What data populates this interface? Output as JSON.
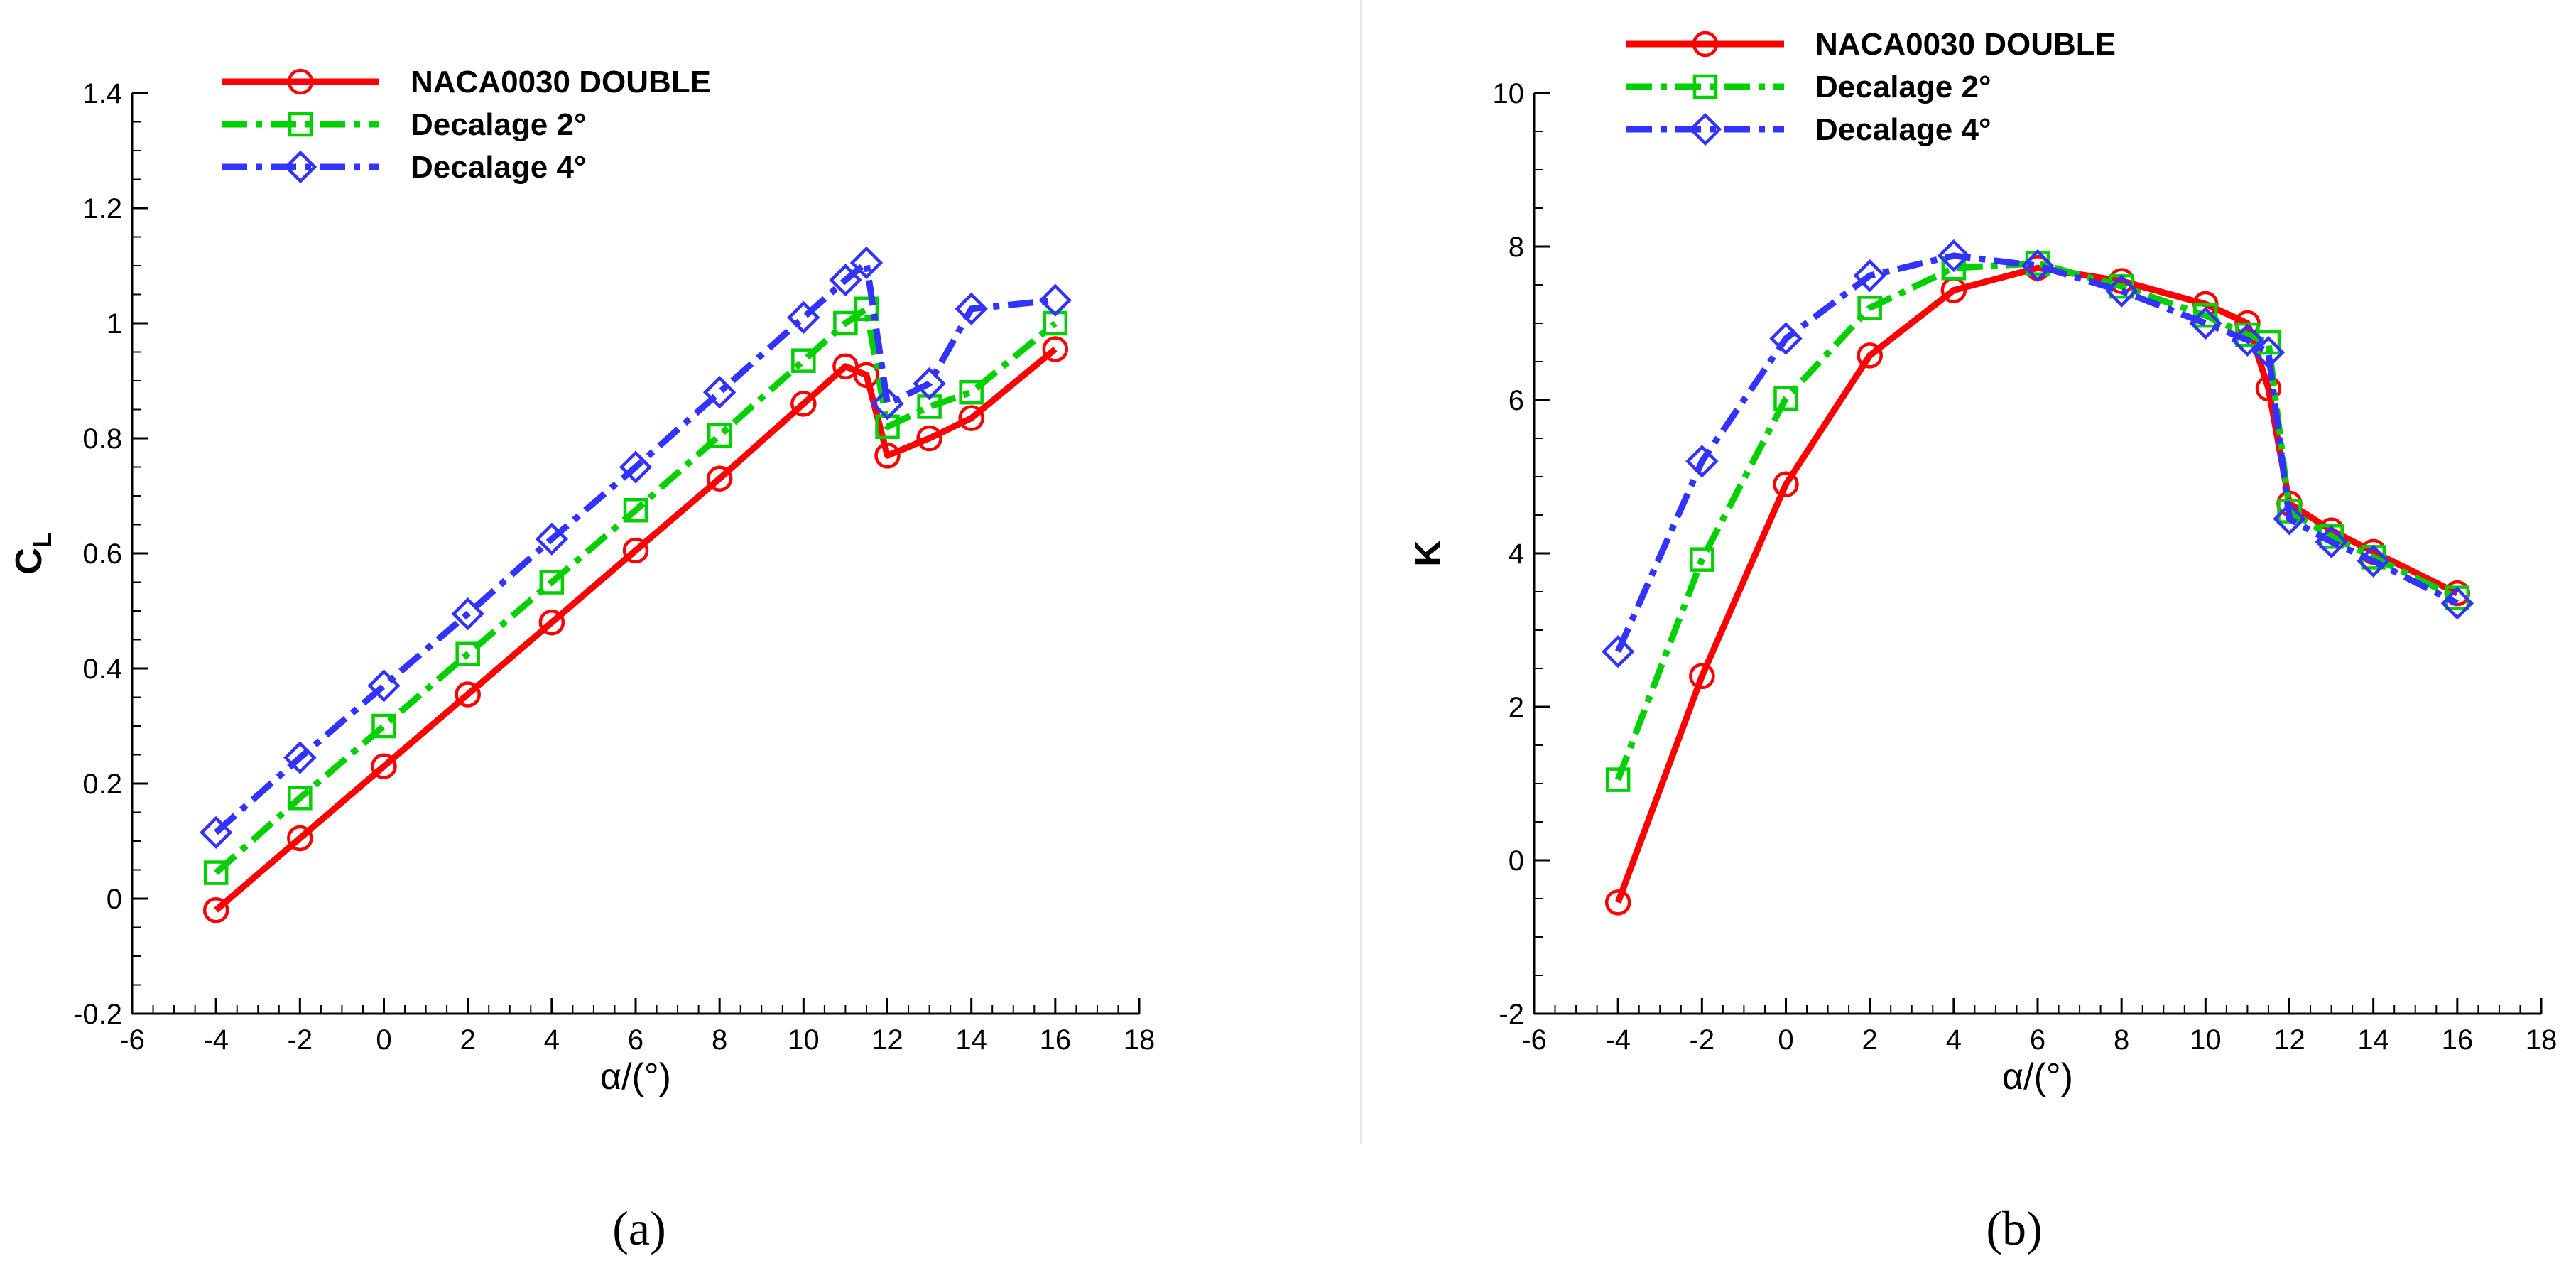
{
  "chart_data": [
    {
      "type": "line",
      "id": "a",
      "caption": "(a)",
      "xlabel": "α/(°)",
      "ylabel": "C",
      "ylabel_sub": "L",
      "xlim": [
        -6,
        18
      ],
      "ylim": [
        -0.2,
        1.4
      ],
      "xticks": [
        -6,
        -4,
        -2,
        0,
        2,
        4,
        6,
        8,
        10,
        12,
        14,
        16,
        18
      ],
      "xtick_labels": [
        "-6",
        "-4",
        "-2",
        "0",
        "2",
        "4",
        "6",
        "8",
        "10",
        "12",
        "14",
        "16",
        "18"
      ],
      "yticks": [
        -0.2,
        0,
        0.2,
        0.4,
        0.6,
        0.8,
        1,
        1.2,
        1.4
      ],
      "ytick_labels": [
        "-0.2",
        "0",
        "0.2",
        "0.4",
        "0.6",
        "0.8",
        "1",
        "1.2",
        "1.4"
      ],
      "grid": false,
      "legend_position": "top-left",
      "series": [
        {
          "name": "NACA0030 DOUBLE",
          "color": "#ff0000",
          "marker": "circle",
          "dash": "solid",
          "x": [
            -4,
            -2,
            0,
            2,
            4,
            6,
            8,
            10,
            11,
            11.5,
            12,
            13,
            14,
            16
          ],
          "y": [
            -0.02,
            0.105,
            0.23,
            0.355,
            0.48,
            0.605,
            0.73,
            0.86,
            0.925,
            0.91,
            0.77,
            0.8,
            0.835,
            0.955
          ]
        },
        {
          "name": "Decalage 2°",
          "color": "#00d000",
          "marker": "square",
          "dash": "dashdot",
          "x": [
            -4,
            -2,
            0,
            2,
            4,
            6,
            8,
            10,
            11,
            11.5,
            12,
            13,
            14,
            16
          ],
          "y": [
            0.045,
            0.175,
            0.3,
            0.425,
            0.55,
            0.675,
            0.805,
            0.935,
            1.0,
            1.025,
            0.82,
            0.855,
            0.88,
            1.0
          ]
        },
        {
          "name": "Decalage 4°",
          "color": "#3333ff",
          "marker": "diamond",
          "dash": "dashdot",
          "x": [
            -4,
            -2,
            0,
            2,
            4,
            6,
            8,
            10,
            11,
            11.5,
            12,
            13,
            14,
            16
          ],
          "y": [
            0.115,
            0.245,
            0.37,
            0.495,
            0.625,
            0.75,
            0.88,
            1.01,
            1.075,
            1.105,
            0.86,
            0.895,
            1.025,
            1.04
          ]
        }
      ]
    },
    {
      "type": "line",
      "id": "b",
      "caption": "(b)",
      "xlabel": "α/(°)",
      "ylabel": "K",
      "ylabel_sub": "",
      "xlim": [
        -6,
        18
      ],
      "ylim": [
        -2,
        10
      ],
      "xticks": [
        -6,
        -4,
        -2,
        0,
        2,
        4,
        6,
        8,
        10,
        12,
        14,
        16,
        18
      ],
      "xtick_labels": [
        "-6",
        "-4",
        "-2",
        "0",
        "2",
        "4",
        "6",
        "8",
        "10",
        "12",
        "14",
        "16",
        "18"
      ],
      "yticks": [
        -2,
        0,
        2,
        4,
        6,
        8,
        10
      ],
      "ytick_labels": [
        "-2",
        "0",
        "2",
        "4",
        "6",
        "8",
        "10"
      ],
      "grid": false,
      "legend_position": "top-left",
      "series": [
        {
          "name": "NACA0030 DOUBLE",
          "color": "#ff0000",
          "marker": "circle",
          "dash": "solid",
          "x": [
            -4,
            -2,
            0,
            2,
            4,
            6,
            8,
            10,
            11,
            11.5,
            12,
            13,
            14,
            16
          ],
          "y": [
            -0.55,
            2.4,
            4.9,
            6.58,
            7.43,
            7.72,
            7.55,
            7.25,
            7.0,
            6.15,
            4.65,
            4.3,
            4.02,
            3.48
          ]
        },
        {
          "name": "Decalage 2°",
          "color": "#00d000",
          "marker": "square",
          "dash": "dashdot",
          "x": [
            -4,
            -2,
            0,
            2,
            4,
            6,
            8,
            10,
            11,
            11.5,
            12,
            13,
            14,
            16
          ],
          "y": [
            1.05,
            3.92,
            6.02,
            7.2,
            7.72,
            7.78,
            7.48,
            7.1,
            6.85,
            6.75,
            4.55,
            4.22,
            3.95,
            3.42
          ]
        },
        {
          "name": "Decalage 4°",
          "color": "#3333ff",
          "marker": "diamond",
          "dash": "dashdot",
          "x": [
            -4,
            -2,
            0,
            2,
            4,
            6,
            8,
            10,
            11,
            11.5,
            12,
            13,
            14,
            16
          ],
          "y": [
            2.72,
            5.2,
            6.8,
            7.62,
            7.88,
            7.75,
            7.42,
            7.0,
            6.78,
            6.62,
            4.45,
            4.15,
            3.9,
            3.35
          ]
        }
      ]
    }
  ]
}
